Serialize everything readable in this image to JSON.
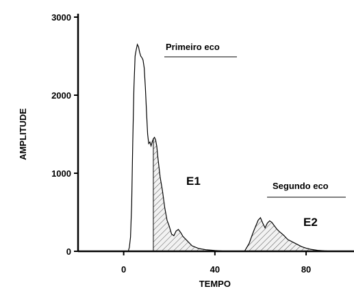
{
  "chart_data": {
    "type": "area",
    "title": "",
    "xlabel": "TEMPO",
    "ylabel": "AMPLITUDE",
    "xlim": [
      -20,
      101
    ],
    "ylim": [
      0,
      3000
    ],
    "x_ticks": [
      0,
      40,
      80
    ],
    "y_ticks": [
      0,
      1000,
      2000,
      3000
    ],
    "grid": false,
    "annotations": {
      "first_echo": "Primeiro eco",
      "second_echo": "Segundo eco",
      "e1": "E1",
      "e2": "E2"
    },
    "hatched_regions": [
      {
        "label": "E1",
        "x_range": [
          13,
          40
        ]
      },
      {
        "label": "E2",
        "x_range": [
          54,
          90
        ]
      }
    ],
    "series": [
      {
        "x": [
          2,
          2.5,
          3,
          3.5,
          4,
          4.5,
          5,
          5.5,
          6,
          6.5,
          7,
          7.5,
          8,
          8.5,
          9,
          9.5,
          10,
          10.5,
          11,
          11.5,
          12,
          12.5,
          13,
          13.5,
          14,
          14.5,
          15,
          16,
          17,
          18,
          19,
          20,
          21,
          22,
          23,
          24,
          25,
          26,
          28,
          30,
          33,
          36,
          40,
          45,
          50,
          53,
          55,
          56,
          57,
          58,
          59,
          60,
          61,
          62,
          63,
          64,
          65,
          66,
          67,
          68,
          70,
          72,
          74,
          76,
          78,
          80,
          82,
          85,
          88,
          91,
          95,
          100
        ],
        "y": [
          0,
          50,
          180,
          600,
          1400,
          2100,
          2500,
          2580,
          2650,
          2620,
          2550,
          2500,
          2480,
          2450,
          2350,
          2100,
          1800,
          1500,
          1380,
          1400,
          1350,
          1400,
          1440,
          1460,
          1430,
          1350,
          1200,
          950,
          780,
          560,
          400,
          320,
          220,
          200,
          260,
          280,
          240,
          190,
          130,
          70,
          35,
          20,
          10,
          0,
          0,
          0,
          100,
          180,
          260,
          330,
          400,
          430,
          360,
          300,
          360,
          390,
          370,
          330,
          290,
          260,
          210,
          150,
          120,
          90,
          60,
          40,
          25,
          12,
          5,
          2,
          0,
          0
        ]
      }
    ]
  }
}
